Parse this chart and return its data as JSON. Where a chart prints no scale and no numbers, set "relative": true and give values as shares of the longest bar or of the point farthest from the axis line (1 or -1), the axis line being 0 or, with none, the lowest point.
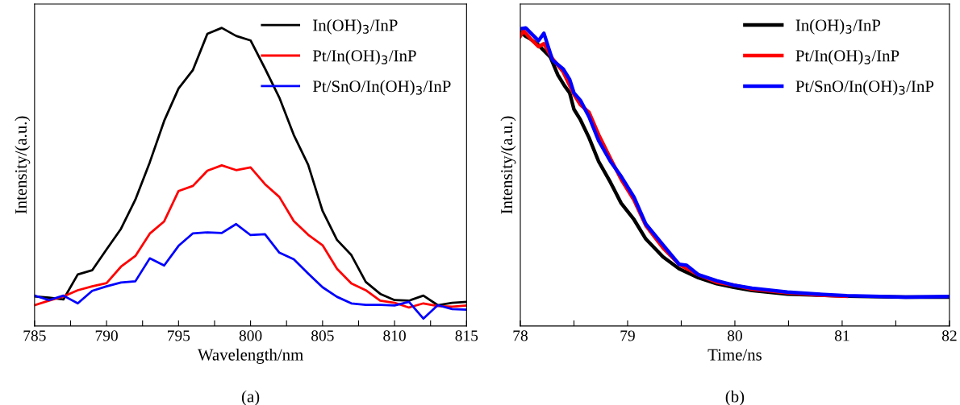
{
  "chart_data": [
    {
      "type": "line",
      "relative": true,
      "xlabel": "Wavelength/nm",
      "ylabel": "Intensity/(a.u.)",
      "annotations": [
        "(a)"
      ],
      "legend": "top right",
      "tick_labels": "x",
      "grid": false,
      "x": [
        785,
        786,
        787,
        788,
        789,
        790,
        791,
        792,
        793,
        794,
        795,
        796,
        797,
        798,
        799,
        800,
        801,
        802,
        803,
        804,
        805,
        806,
        807,
        808,
        809,
        810,
        811,
        812,
        813,
        814,
        815
      ],
      "xlim": [
        785,
        815
      ],
      "xticks": [
        785,
        {
          "value": 787.5,
          "label": null
        },
        790,
        {
          "value": 792.5,
          "label": null
        },
        795,
        {
          "value": 797.5,
          "label": null
        },
        800,
        {
          "value": 802.5,
          "label": null
        },
        805,
        {
          "value": 807.5,
          "label": null
        },
        810,
        {
          "value": 812.5,
          "label": null
        },
        815
      ],
      "series": [
        {
          "name": "In(OH)$_{3}$/InP",
          "color": "#000000",
          "values": [
            0.099,
            0.095,
            0.089,
            0.173,
            0.187,
            0.257,
            0.326,
            0.424,
            0.549,
            0.688,
            0.797,
            0.859,
            0.98,
            1,
            0.973,
            0.958,
            0.864,
            0.766,
            0.641,
            0.541,
            0.386,
            0.289,
            0.238,
            0.148,
            0.108,
            0.087,
            0.085,
            0.102,
            0.07,
            0.078,
            0.081
          ]
        },
        {
          "name": "Pt/In(OH)$_{3}$/InP",
          "color": "#ff0000",
          "values": [
            0.07,
            0.085,
            0.099,
            0.12,
            0.133,
            0.144,
            0.199,
            0.235,
            0.31,
            0.351,
            0.453,
            0.47,
            0.521,
            0.539,
            0.523,
            0.532,
            0.476,
            0.433,
            0.352,
            0.306,
            0.271,
            0.192,
            0.143,
            0.12,
            0.085,
            0.078,
            0.062,
            0.076,
            0.067,
            0.065,
            0.069
          ]
        },
        {
          "name": "Pt/SnO/In(OH)$_{3}$/InP",
          "color": "#0000ff",
          "values": [
            0.102,
            0.087,
            0.102,
            0.076,
            0.118,
            0.133,
            0.146,
            0.15,
            0.227,
            0.203,
            0.269,
            0.311,
            0.314,
            0.312,
            0.342,
            0.305,
            0.308,
            0.246,
            0.224,
            0.176,
            0.13,
            0.098,
            0.076,
            0.071,
            0.071,
            0.069,
            0.081,
            0.025,
            0.07,
            0.057,
            0.055
          ]
        }
      ]
    },
    {
      "type": "line",
      "relative": true,
      "xlabel": "Time/ns",
      "ylabel": "Intensity/(a.u.)",
      "annotations": [
        "(b)"
      ],
      "legend": "top right",
      "tick_labels": "x",
      "grid": false,
      "xlim": [
        78,
        82
      ],
      "xticks": [
        78,
        {
          "value": 78.5,
          "label": null
        },
        79,
        {
          "value": 79.5,
          "label": null
        },
        80,
        {
          "value": 80.5,
          "label": null
        },
        81,
        {
          "value": 81.5,
          "label": null
        },
        82
      ],
      "series": [
        {
          "name": "In(OH)$_{3}$/InP",
          "color": "#000000",
          "x": [
            78.0,
            78.05,
            78.09,
            78.17,
            78.28,
            78.35,
            78.41,
            78.46,
            78.5,
            78.56,
            78.64,
            78.73,
            78.84,
            78.94,
            79.06,
            79.17,
            79.33,
            79.48,
            79.66,
            79.83,
            79.99,
            80.16,
            80.49,
            80.77,
            81.04,
            81.59,
            82.0
          ],
          "values": [
            0.987,
            0.972,
            0.964,
            0.942,
            0.902,
            0.842,
            0.807,
            0.782,
            0.727,
            0.692,
            0.632,
            0.552,
            0.482,
            0.412,
            0.357,
            0.292,
            0.232,
            0.192,
            0.162,
            0.142,
            0.13,
            0.119,
            0.107,
            0.104,
            0.1,
            0.097,
            0.097
          ]
        },
        {
          "name": "Pt/In(OH)$_{3}$/InP",
          "color": "#ff0000",
          "x": [
            78.0,
            78.03,
            78.1,
            78.17,
            78.22,
            78.3,
            78.4,
            78.5,
            78.56,
            78.64,
            78.73,
            78.84,
            78.94,
            79.06,
            79.17,
            79.33,
            79.48,
            79.66,
            79.83,
            79.99,
            80.16,
            80.49,
            80.77,
            81.04
          ],
          "values": [
            0.972,
            0.99,
            0.962,
            0.937,
            0.947,
            0.897,
            0.852,
            0.777,
            0.742,
            0.717,
            0.642,
            0.562,
            0.492,
            0.422,
            0.337,
            0.262,
            0.207,
            0.172,
            0.147,
            0.137,
            0.124,
            0.112,
            0.104,
            0.1
          ]
        },
        {
          "name": "Pt/SnO/In(OH)$_{3}$/InP",
          "color": "#0000ff",
          "x": [
            78.0,
            78.05,
            78.1,
            78.17,
            78.22,
            78.3,
            78.4,
            78.46,
            78.5,
            78.56,
            78.64,
            78.73,
            78.84,
            78.94,
            79.06,
            79.17,
            79.33,
            79.48,
            79.55,
            79.66,
            79.83,
            79.99,
            80.16,
            80.49,
            80.77,
            81.04,
            81.59,
            82.0
          ],
          "values": [
            0.997,
            1,
            0.982,
            0.957,
            0.982,
            0.892,
            0.862,
            0.827,
            0.782,
            0.757,
            0.702,
            0.622,
            0.552,
            0.502,
            0.432,
            0.342,
            0.272,
            0.207,
            0.204,
            0.172,
            0.152,
            0.137,
            0.127,
            0.114,
            0.107,
            0.102,
            0.097,
            0.099
          ]
        }
      ]
    }
  ]
}
